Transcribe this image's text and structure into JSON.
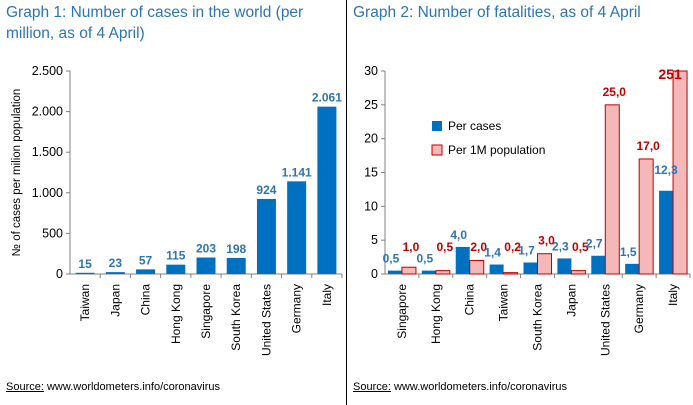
{
  "graphs": {
    "left": {
      "title": "Graph 1: Number of cases in the world (per million, as of 4 April)",
      "source_label": "Source:",
      "source_text": " www.worldometers.info/coronavirus"
    },
    "right": {
      "title": "Graph 2: Number of fatalities, as of 4 April",
      "source_label": "Source:",
      "source_text": " www.worldometers.info/coronavirus"
    }
  },
  "colors": {
    "title": "#2e74b5",
    "bar_blue": "#0070c0",
    "bar_pink": "#f4b8b8",
    "bar_pink_border": "#c00000",
    "label_blue": "#2e74b5",
    "label_red": "#c00000"
  },
  "chart_data": [
    {
      "type": "bar",
      "title": "Graph 1: Number of cases in the world (per million, as of 4 April)",
      "ylabel": "№ of cases per milion population",
      "categories": [
        "Taiwan",
        "Japan",
        "China",
        "Hong Kong",
        "Singapore",
        "South Korea",
        "United States",
        "Germany",
        "Italy"
      ],
      "values": [
        15,
        23,
        57,
        115,
        203,
        198,
        924,
        1141,
        2061
      ],
      "data_labels": [
        "15",
        "23",
        "57",
        "115",
        "203",
        "198",
        "924",
        "1.141",
        "2.061"
      ],
      "ylim": [
        0,
        2500
      ],
      "yticks": [
        0,
        500,
        1000,
        1500,
        2000,
        2500
      ],
      "ytick_labels": [
        "0",
        "500",
        "1.000",
        "1.500",
        "2.000",
        "2.500"
      ],
      "grid": false
    },
    {
      "type": "bar",
      "title": "Graph 2: Number of fatalities, as of 4 April",
      "categories": [
        "Singapore",
        "Hong Kong",
        "China",
        "Taiwan",
        "South Korea",
        "Japan",
        "United States",
        "Germany",
        "Italy"
      ],
      "series": [
        {
          "name": "Per cases",
          "values": [
            0.5,
            0.5,
            4.0,
            1.4,
            1.7,
            2.3,
            2.7,
            1.5,
            12.3
          ],
          "data_labels": [
            "0,5",
            "0,5",
            "4,0",
            "1,4",
            "1,7",
            "2,3",
            "2,7",
            "1,5",
            "12,3"
          ]
        },
        {
          "name": "Per 1M population",
          "values": [
            1.0,
            0.5,
            2.0,
            0.2,
            3.0,
            0.5,
            25.0,
            17.0,
            251
          ],
          "data_labels": [
            "1,0",
            "0,5",
            "2,0",
            "0,2",
            "3,0",
            "0,5",
            "25,0",
            "17,0",
            "251"
          ]
        }
      ],
      "ylim": [
        0,
        30
      ],
      "yticks": [
        0,
        5,
        10,
        15,
        20,
        25,
        30
      ],
      "ytick_labels": [
        "0",
        "5",
        "10",
        "15",
        "20",
        "25",
        "30"
      ],
      "grid": false,
      "legend_position": "upper-left"
    }
  ]
}
